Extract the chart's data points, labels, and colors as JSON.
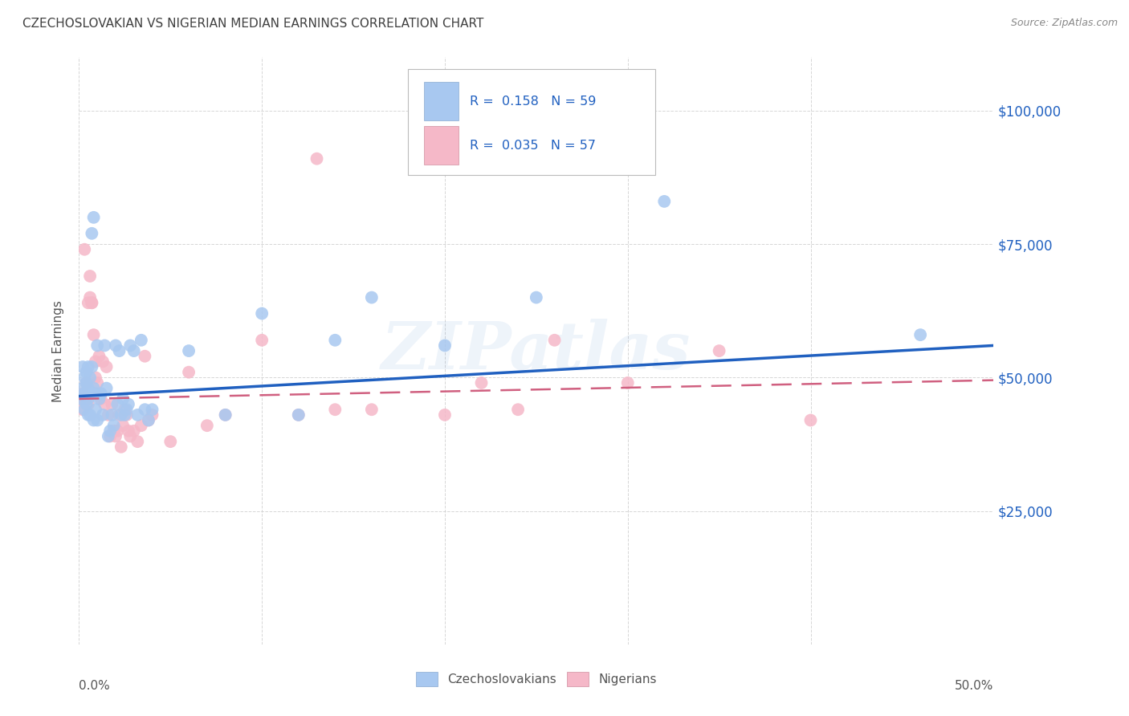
{
  "title": "CZECHOSLOVAKIAN VS NIGERIAN MEDIAN EARNINGS CORRELATION CHART",
  "source": "Source: ZipAtlas.com",
  "ylabel": "Median Earnings",
  "yticks": [
    0,
    25000,
    50000,
    75000,
    100000
  ],
  "ytick_labels_right": [
    "",
    "$25,000",
    "$50,000",
    "$75,000",
    "$100,000"
  ],
  "legend_blue_r": "R =  0.158",
  "legend_blue_n": "N = 59",
  "legend_pink_r": "R =  0.035",
  "legend_pink_n": "N = 57",
  "legend_bottom_blue": "Czechoslovakians",
  "legend_bottom_pink": "Nigerians",
  "blue_color": "#A8C8F0",
  "pink_color": "#F5B8C8",
  "blue_line_color": "#2060C0",
  "pink_line_color": "#D06080",
  "grid_color": "#CCCCCC",
  "title_color": "#404040",
  "right_tick_color": "#2060C0",
  "source_color": "#888888",
  "legend_text_color": "#2060C0",
  "blue_x": [
    0.001,
    0.002,
    0.002,
    0.003,
    0.003,
    0.003,
    0.004,
    0.004,
    0.004,
    0.005,
    0.005,
    0.005,
    0.005,
    0.006,
    0.006,
    0.006,
    0.007,
    0.007,
    0.008,
    0.008,
    0.008,
    0.009,
    0.009,
    0.01,
    0.01,
    0.011,
    0.012,
    0.013,
    0.014,
    0.015,
    0.016,
    0.017,
    0.018,
    0.019,
    0.02,
    0.021,
    0.022,
    0.023,
    0.024,
    0.025,
    0.026,
    0.027,
    0.028,
    0.03,
    0.032,
    0.034,
    0.036,
    0.038,
    0.04,
    0.06,
    0.08,
    0.1,
    0.12,
    0.14,
    0.16,
    0.2,
    0.25,
    0.32,
    0.46
  ],
  "blue_y": [
    46000,
    48000,
    52000,
    47000,
    50000,
    44000,
    49000,
    45000,
    51000,
    48000,
    43000,
    52000,
    46000,
    50000,
    47000,
    43000,
    52000,
    77000,
    48000,
    42000,
    80000,
    47000,
    44000,
    56000,
    42000,
    46000,
    47000,
    43000,
    56000,
    48000,
    39000,
    40000,
    43000,
    41000,
    56000,
    45000,
    55000,
    43000,
    46000,
    43000,
    44000,
    45000,
    56000,
    55000,
    43000,
    57000,
    44000,
    42000,
    44000,
    55000,
    43000,
    62000,
    43000,
    57000,
    65000,
    56000,
    65000,
    83000,
    58000
  ],
  "pink_x": [
    0.001,
    0.002,
    0.002,
    0.003,
    0.003,
    0.004,
    0.004,
    0.005,
    0.005,
    0.006,
    0.006,
    0.007,
    0.007,
    0.008,
    0.009,
    0.009,
    0.01,
    0.011,
    0.012,
    0.013,
    0.014,
    0.015,
    0.016,
    0.017,
    0.018,
    0.019,
    0.02,
    0.021,
    0.022,
    0.023,
    0.024,
    0.025,
    0.026,
    0.027,
    0.028,
    0.03,
    0.032,
    0.034,
    0.036,
    0.038,
    0.04,
    0.05,
    0.06,
    0.07,
    0.08,
    0.1,
    0.12,
    0.14,
    0.16,
    0.2,
    0.22,
    0.24,
    0.26,
    0.3,
    0.35,
    0.4,
    0.13
  ],
  "pink_y": [
    46000,
    47000,
    44000,
    74000,
    46000,
    49000,
    46000,
    64000,
    45000,
    69000,
    65000,
    64000,
    64000,
    58000,
    53000,
    50000,
    49000,
    54000,
    46000,
    53000,
    45000,
    52000,
    43000,
    39000,
    45000,
    40000,
    39000,
    40000,
    43000,
    37000,
    41000,
    44000,
    43000,
    40000,
    39000,
    40000,
    38000,
    41000,
    54000,
    42000,
    43000,
    38000,
    51000,
    41000,
    43000,
    57000,
    43000,
    44000,
    44000,
    43000,
    49000,
    44000,
    57000,
    49000,
    55000,
    42000,
    91000
  ],
  "xlim": [
    0.0,
    0.5
  ],
  "ylim": [
    0,
    110000
  ],
  "blue_trendline": [
    0.0,
    46500,
    0.5,
    56000
  ],
  "pink_trendline": [
    0.0,
    46000,
    0.5,
    49500
  ],
  "watermark": "ZIPatlas",
  "figsize": [
    14.06,
    8.92
  ],
  "dpi": 100
}
